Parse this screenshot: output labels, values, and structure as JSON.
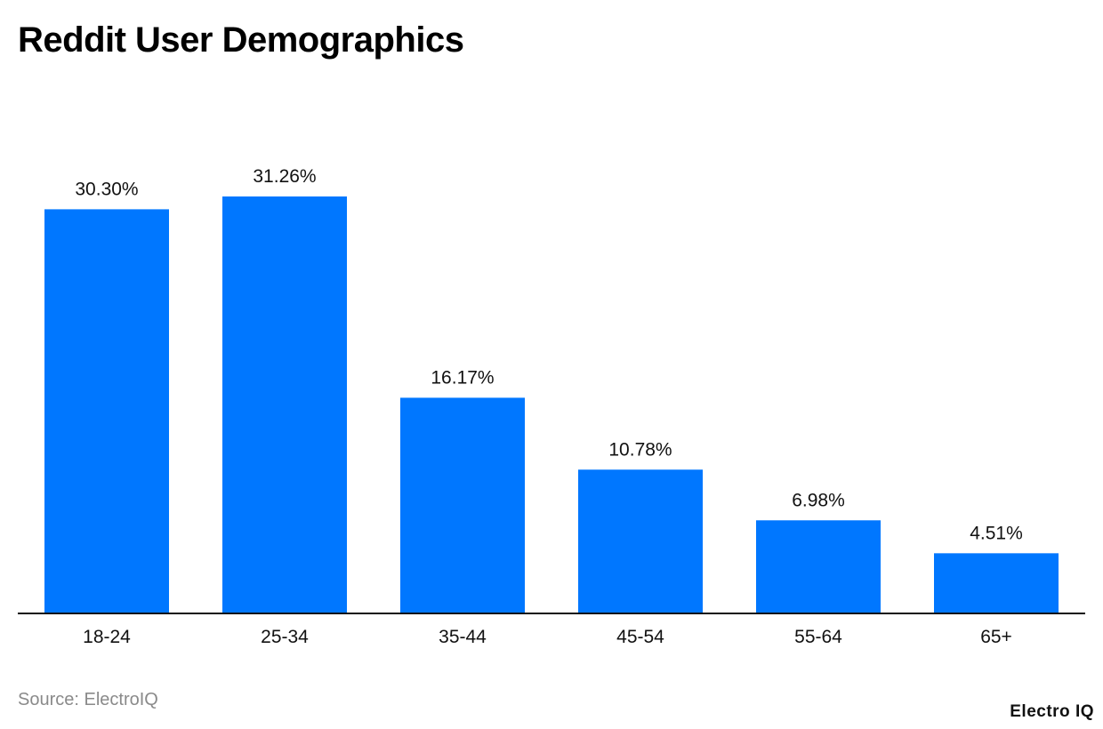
{
  "colors": {
    "bar": "#0077FF",
    "axis": "#111111",
    "label": "#111111"
  },
  "source": "Source: ElectroIQ",
  "brand": "Electro IQ",
  "chart_data": {
    "type": "bar",
    "title": "Reddit User Demographics",
    "xlabel": "",
    "ylabel": "",
    "categories": [
      "18-24",
      "25-34",
      "35-44",
      "45-54",
      "55-64",
      "65+"
    ],
    "values": [
      30.3,
      31.26,
      16.17,
      10.78,
      6.98,
      4.51
    ],
    "value_labels": [
      "30.30%",
      "31.26%",
      "16.17%",
      "10.78%",
      "6.98%",
      "4.51%"
    ],
    "ylim": [
      0,
      31.26
    ],
    "grid": false,
    "legend": "none"
  }
}
